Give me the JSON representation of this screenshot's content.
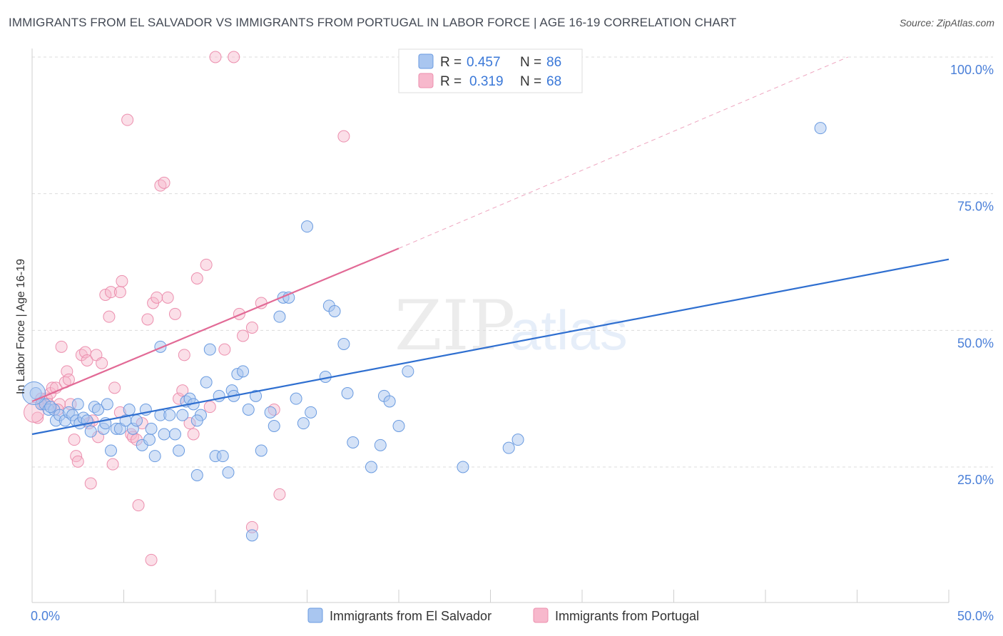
{
  "header": {
    "title": "IMMIGRANTS FROM EL SALVADOR VS IMMIGRANTS FROM PORTUGAL IN LABOR FORCE | AGE 16-19 CORRELATION CHART",
    "source": "Source: ZipAtlas.com"
  },
  "watermark": {
    "zip": "ZIP",
    "atlas": "atlas"
  },
  "legend": {
    "r_label": "R =",
    "n_label": "N =",
    "series1": {
      "r": "0.457",
      "n": "86"
    },
    "series2": {
      "r": "0.319",
      "n": "68"
    }
  },
  "bottom_legend": {
    "series1": "Immigrants from El Salvador",
    "series2": "Immigrants from Portugal"
  },
  "colors": {
    "series1_fill": "#a9c6f0",
    "series1_stroke": "#6a9be0",
    "series1_line": "#2f6fd0",
    "series2_fill": "#f7b8cc",
    "series2_stroke": "#ec8fae",
    "series2_line": "#e26a96",
    "axis_label": "#4a7fd8"
  },
  "chart_data": {
    "type": "scatter",
    "title": "IMMIGRANTS FROM EL SALVADOR VS IMMIGRANTS FROM PORTUGAL IN LABOR FORCE | AGE 16-19 CORRELATION CHART",
    "xlabel": "",
    "ylabel": "In Labor Force | Age 16-19",
    "xlim": [
      0,
      50
    ],
    "ylim": [
      0,
      105
    ],
    "x_tick_labels": [
      "0.0%",
      "50.0%"
    ],
    "y_ticks": [
      25,
      50,
      75,
      100
    ],
    "y_tick_labels": [
      "25.0%",
      "50.0%",
      "75.0%",
      "100.0%"
    ],
    "series": [
      {
        "name": "Immigrants from El Salvador",
        "r": 0.457,
        "n": 86,
        "trend": {
          "x": [
            0,
            50
          ],
          "y": [
            31.0,
            63.0
          ]
        },
        "points": [
          [
            0.2,
            38.5
          ],
          [
            0.5,
            36.5
          ],
          [
            0.7,
            36.5
          ],
          [
            0.9,
            35.5
          ],
          [
            1.2,
            35.5
          ],
          [
            1.3,
            33.5
          ],
          [
            1.5,
            34.5
          ],
          [
            1.8,
            33.5
          ],
          [
            2.0,
            35.0
          ],
          [
            2.2,
            34.5
          ],
          [
            2.4,
            33.5
          ],
          [
            2.6,
            33.0
          ],
          [
            2.8,
            34.0
          ],
          [
            3.0,
            33.5
          ],
          [
            3.2,
            31.5
          ],
          [
            3.4,
            36.0
          ],
          [
            3.6,
            35.5
          ],
          [
            3.9,
            32.0
          ],
          [
            4.1,
            36.5
          ],
          [
            4.3,
            28.0
          ],
          [
            4.6,
            32.0
          ],
          [
            4.8,
            32.0
          ],
          [
            5.1,
            33.5
          ],
          [
            5.3,
            35.5
          ],
          [
            5.5,
            32.0
          ],
          [
            5.7,
            33.5
          ],
          [
            6.0,
            29.0
          ],
          [
            6.2,
            35.5
          ],
          [
            6.4,
            30.0
          ],
          [
            6.5,
            32.0
          ],
          [
            6.7,
            27.0
          ],
          [
            7.0,
            34.5
          ],
          [
            7.2,
            31.0
          ],
          [
            7.5,
            34.5
          ],
          [
            7.8,
            31.0
          ],
          [
            8.0,
            28.0
          ],
          [
            8.2,
            34.5
          ],
          [
            8.4,
            37.0
          ],
          [
            8.6,
            37.5
          ],
          [
            9.0,
            23.5
          ],
          [
            9.2,
            34.5
          ],
          [
            9.5,
            40.5
          ],
          [
            9.7,
            46.5
          ],
          [
            10.0,
            27.0
          ],
          [
            10.2,
            38.0
          ],
          [
            10.4,
            27.0
          ],
          [
            10.7,
            24.0
          ],
          [
            10.9,
            39.0
          ],
          [
            11.2,
            42.0
          ],
          [
            11.5,
            42.5
          ],
          [
            11.8,
            35.5
          ],
          [
            12.2,
            38.0
          ],
          [
            12.5,
            28.0
          ],
          [
            13.0,
            35.0
          ],
          [
            13.2,
            32.5
          ],
          [
            13.5,
            52.5
          ],
          [
            13.7,
            56.0
          ],
          [
            14.0,
            56.0
          ],
          [
            14.4,
            37.5
          ],
          [
            14.8,
            33.0
          ],
          [
            15.0,
            69.0
          ],
          [
            15.2,
            35.0
          ],
          [
            16.0,
            41.5
          ],
          [
            16.2,
            54.5
          ],
          [
            16.5,
            53.5
          ],
          [
            17.0,
            47.5
          ],
          [
            17.2,
            38.5
          ],
          [
            17.5,
            29.5
          ],
          [
            18.5,
            25.0
          ],
          [
            19.0,
            29.0
          ],
          [
            19.2,
            38.0
          ],
          [
            19.5,
            37.0
          ],
          [
            20.0,
            32.5
          ],
          [
            20.5,
            42.5
          ],
          [
            23.5,
            25.0
          ],
          [
            26.0,
            28.5
          ],
          [
            26.5,
            30.0
          ],
          [
            43.0,
            87.0
          ],
          [
            12.0,
            12.5
          ],
          [
            7.0,
            47.0
          ],
          [
            9.0,
            33.5
          ],
          [
            2.5,
            36.5
          ],
          [
            1.0,
            36.0
          ],
          [
            4.0,
            33.0
          ],
          [
            11.0,
            38.0
          ],
          [
            8.8,
            36.5
          ]
        ]
      },
      {
        "name": "Immigrants from Portugal",
        "r": 0.319,
        "n": 68,
        "trend": {
          "x": [
            0,
            20
          ],
          "y": [
            37.0,
            65.0
          ]
        },
        "trend_dashed": {
          "x": [
            20,
            44.5
          ],
          "y": [
            65.0,
            100.0
          ]
        },
        "points": [
          [
            0.3,
            34.0
          ],
          [
            0.5,
            37.5
          ],
          [
            0.6,
            36.5
          ],
          [
            0.8,
            37.5
          ],
          [
            1.0,
            38.5
          ],
          [
            1.1,
            39.5
          ],
          [
            1.3,
            39.5
          ],
          [
            1.5,
            36.5
          ],
          [
            1.6,
            47.0
          ],
          [
            1.8,
            40.5
          ],
          [
            1.9,
            42.5
          ],
          [
            2.1,
            36.5
          ],
          [
            2.3,
            30.0
          ],
          [
            2.4,
            27.0
          ],
          [
            2.5,
            26.0
          ],
          [
            2.7,
            45.5
          ],
          [
            2.9,
            46.0
          ],
          [
            3.0,
            44.5
          ],
          [
            3.1,
            33.0
          ],
          [
            3.2,
            22.0
          ],
          [
            3.3,
            33.5
          ],
          [
            3.5,
            45.5
          ],
          [
            3.6,
            30.5
          ],
          [
            3.8,
            44.0
          ],
          [
            4.0,
            56.5
          ],
          [
            4.2,
            52.5
          ],
          [
            4.3,
            57.0
          ],
          [
            4.5,
            39.5
          ],
          [
            4.4,
            25.5
          ],
          [
            4.8,
            35.0
          ],
          [
            4.8,
            57.0
          ],
          [
            4.9,
            59.0
          ],
          [
            5.2,
            88.5
          ],
          [
            5.4,
            31.0
          ],
          [
            5.5,
            30.5
          ],
          [
            5.7,
            30.0
          ],
          [
            5.8,
            18.0
          ],
          [
            6.0,
            33.0
          ],
          [
            6.3,
            52.0
          ],
          [
            6.5,
            8.0
          ],
          [
            6.6,
            55.0
          ],
          [
            6.8,
            56.0
          ],
          [
            7.0,
            76.5
          ],
          [
            7.2,
            77.0
          ],
          [
            7.4,
            56.0
          ],
          [
            7.8,
            53.0
          ],
          [
            8.0,
            37.5
          ],
          [
            8.2,
            39.0
          ],
          [
            8.3,
            45.5
          ],
          [
            8.6,
            33.0
          ],
          [
            8.8,
            31.0
          ],
          [
            9.0,
            59.5
          ],
          [
            9.5,
            62.0
          ],
          [
            9.7,
            36.0
          ],
          [
            10.0,
            100.0
          ],
          [
            10.5,
            46.5
          ],
          [
            11.0,
            100.0
          ],
          [
            11.3,
            53.0
          ],
          [
            11.5,
            49.0
          ],
          [
            12.0,
            50.5
          ],
          [
            12.5,
            55.0
          ],
          [
            13.2,
            35.5
          ],
          [
            13.5,
            20.0
          ],
          [
            17.0,
            85.5
          ],
          [
            12.0,
            14.0
          ],
          [
            2.0,
            41.0
          ],
          [
            1.4,
            35.5
          ],
          [
            0.9,
            36.5
          ]
        ]
      }
    ]
  }
}
